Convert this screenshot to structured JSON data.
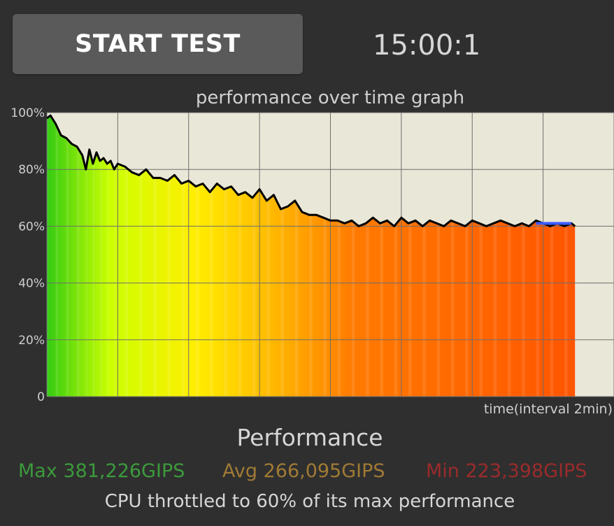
{
  "start_button": {
    "label": "START TEST"
  },
  "timer": {
    "value": "15:00:1"
  },
  "chart_data": {
    "type": "area",
    "title": "performance over time graph",
    "xlabel": "time(interval 2min)",
    "ylabel": "",
    "y_tick_labels": [
      "100%",
      "80%",
      "60%",
      "40%",
      "20%",
      "0"
    ],
    "ylim": [
      0,
      100
    ],
    "x_unit": "minutes",
    "xlim": [
      0,
      15.0
    ],
    "x_grid_interval": 2,
    "grid": true,
    "background_color": "#e9e7d7",
    "line_color": "#000000",
    "fill_colors": [
      "#33cc11",
      "#ccff00",
      "#ffee00",
      "#ffbb00",
      "#ff7a00",
      "#ff5500"
    ],
    "series": [
      {
        "values_x": [
          0,
          0.1,
          0.25,
          0.4,
          0.55,
          0.7,
          0.85,
          1.0,
          1.1,
          1.2,
          1.3,
          1.4,
          1.5,
          1.6,
          1.7,
          1.8,
          1.9,
          2.0,
          2.2,
          2.4,
          2.6,
          2.8,
          3.0,
          3.2,
          3.4,
          3.6,
          3.8,
          4.0,
          4.2,
          4.4,
          4.6,
          4.8,
          5.0,
          5.2,
          5.4,
          5.6,
          5.8,
          6.0,
          6.2,
          6.4,
          6.6,
          6.8,
          7.0,
          7.2,
          7.4,
          7.6,
          7.8,
          8.0,
          8.2,
          8.4,
          8.6,
          8.8,
          9.0,
          9.2,
          9.4,
          9.6,
          9.8,
          10.0,
          10.2,
          10.4,
          10.6,
          10.8,
          11.0,
          11.2,
          11.4,
          11.6,
          11.8,
          12.0,
          12.2,
          12.4,
          12.6,
          12.8,
          13.0,
          13.2,
          13.4,
          13.6,
          13.8,
          14.0,
          14.2,
          14.4,
          14.6,
          14.8,
          14.9
        ],
        "values_y": [
          98,
          99,
          96,
          92,
          91,
          89,
          88,
          85,
          80,
          87,
          82,
          86,
          83,
          84,
          82,
          83,
          80,
          82,
          81,
          79,
          78,
          80,
          77,
          77,
          76,
          78,
          75,
          76,
          74,
          75,
          72,
          75,
          73,
          74,
          71,
          72,
          70,
          73,
          69,
          71,
          66,
          67,
          69,
          65,
          64,
          64,
          63,
          62,
          62,
          61,
          62,
          60,
          61,
          63,
          61,
          62,
          60,
          63,
          61,
          62,
          60,
          62,
          61,
          60,
          62,
          61,
          60,
          62,
          61,
          60,
          61,
          62,
          61,
          60,
          61,
          60,
          62,
          61,
          60,
          61,
          60,
          61,
          60
        ]
      }
    ],
    "highlight": {
      "color": "#3b5cff",
      "from_x": 13.8,
      "to_x": 14.8,
      "value": 61
    }
  },
  "summary": {
    "title": "Performance",
    "max_label": "Max 381,226GIPS",
    "avg_label": "Avg 266,095GIPS",
    "min_label": "Min 223,398GIPS",
    "throttle_text": "CPU throttled to 60% of its max performance",
    "colors": {
      "max": "#3c9a3c",
      "avg": "#a07a35",
      "min": "#9a2b2b"
    }
  }
}
